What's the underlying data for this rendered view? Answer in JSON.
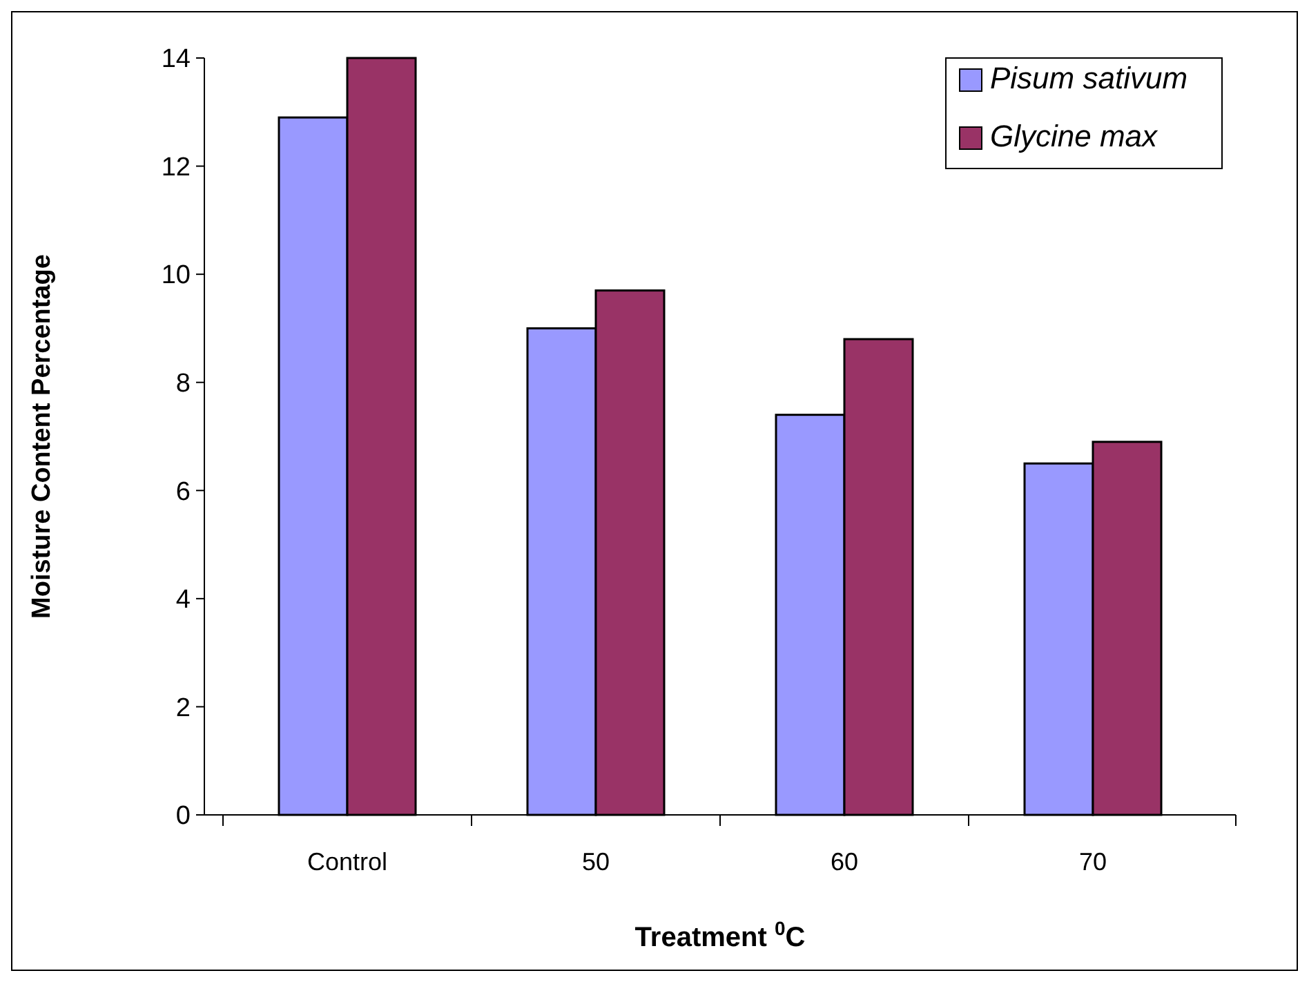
{
  "chart_data": {
    "type": "bar",
    "xlabel": "Treatment  $^{0}$C",
    "ylabel": "Moisture Content Percentage",
    "categories": [
      "Control",
      "50",
      "60",
      "70"
    ],
    "series": [
      {
        "name": "Pisum sativum",
        "color": "#9999ff",
        "values": [
          12.9,
          9.0,
          7.4,
          6.5
        ]
      },
      {
        "name": "Glycine max",
        "color": "#993366",
        "values": [
          14.0,
          9.7,
          8.8,
          6.9
        ]
      }
    ],
    "ylim": [
      0,
      14
    ],
    "yticks": [
      0,
      2,
      4,
      6,
      8,
      10,
      12,
      14
    ],
    "grid": false,
    "legend": "top right"
  }
}
